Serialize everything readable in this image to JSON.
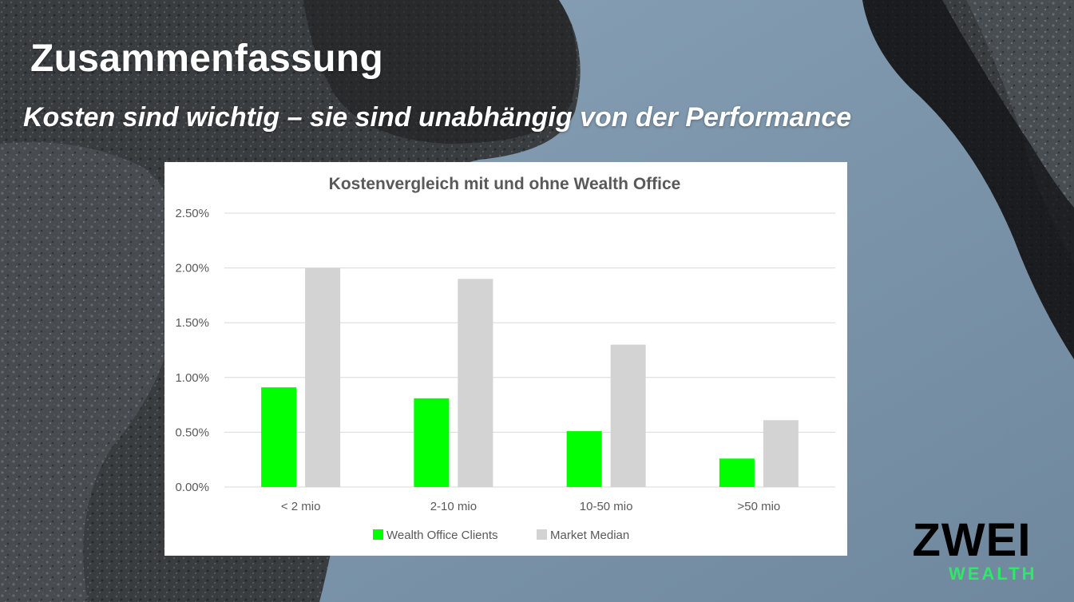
{
  "slide": {
    "title": "Zusammenfassung",
    "subtitle": "Kosten sind wichtig – sie sind unabhängig von der Performance"
  },
  "logo": {
    "main": "ZWEI",
    "sub": "WEALTH",
    "sub_color": "#2ee86a"
  },
  "chart_data": {
    "type": "bar",
    "title": "Kostenvergleich mit und ohne Wealth Office",
    "categories": [
      "< 2 mio",
      "2-10 mio",
      "10-50 mio",
      ">50 mio"
    ],
    "series": [
      {
        "name": "Wealth Office Clients",
        "values": [
          0.0091,
          0.0081,
          0.0051,
          0.0026
        ],
        "color": "#00ff00"
      },
      {
        "name": "Market Median",
        "values": [
          0.02,
          0.019,
          0.013,
          0.0061
        ],
        "color": "#d3d3d3"
      }
    ],
    "ylim": [
      0,
      0.025
    ],
    "yticks": [
      "0.00%",
      "0.50%",
      "1.00%",
      "1.50%",
      "2.00%",
      "2.50%"
    ],
    "xlabel": "",
    "ylabel": "",
    "grid": true,
    "legend_position": "bottom"
  }
}
